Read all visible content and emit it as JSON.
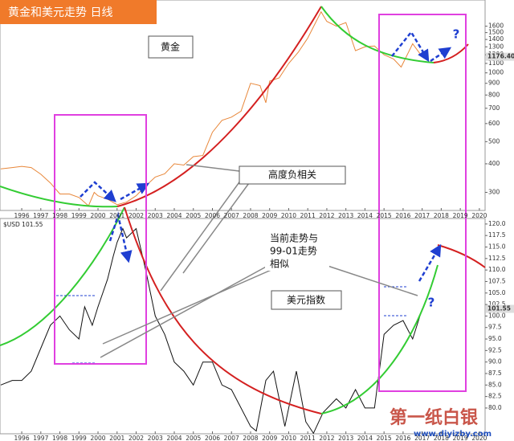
{
  "chart_data": [
    {
      "type": "line",
      "title": "黄金和美元走势 日线",
      "label": "黄金",
      "log_scale": true,
      "x": [
        1994.9,
        1995.5,
        1996,
        1996.5,
        1997,
        1997.5,
        1998,
        1998.5,
        1999,
        1999.5,
        1999.8,
        2000,
        2000.5,
        2001,
        2001.5,
        2002,
        2002.5,
        2003,
        2003.5,
        2004,
        2004.5,
        2005,
        2005.5,
        2006,
        2006.5,
        2007,
        2007.5,
        2008,
        2008.5,
        2008.8,
        2009,
        2009.5,
        2010,
        2010.5,
        2011,
        2011.7,
        2012,
        2012.5,
        2013,
        2013.5,
        2014,
        2014.5,
        2015,
        2015.5,
        2015.9,
        2016.5,
        2017
      ],
      "series": [
        {
          "name": "黄金",
          "color": "#e8873a",
          "values": [
            380,
            385,
            390,
            385,
            360,
            330,
            295,
            295,
            285,
            262,
            300,
            290,
            280,
            265,
            272,
            290,
            320,
            350,
            362,
            400,
            395,
            430,
            435,
            550,
            620,
            640,
            680,
            900,
            880,
            740,
            920,
            950,
            1100,
            1230,
            1420,
            1850,
            1680,
            1600,
            1660,
            1250,
            1300,
            1310,
            1200,
            1150,
            1060,
            1340,
            1176.4
          ]
        }
      ],
      "last_value_label": "1176.40",
      "xlim": [
        1994.86,
        2020.3
      ],
      "ylim": [
        250,
        2050
      ],
      "xticks": [
        1996,
        1997,
        1998,
        1999,
        2000,
        2001,
        2002,
        2003,
        2004,
        2005,
        2006,
        2007,
        2008,
        2009,
        2010,
        2011,
        2012,
        2013,
        2014,
        2015,
        2016,
        2017,
        2018,
        2019,
        2020
      ],
      "yticks": [
        300,
        400,
        500,
        600,
        700,
        800,
        900,
        1000,
        1100,
        1200,
        1300,
        1400,
        1500,
        1600
      ],
      "annotations": [
        "高度负相关",
        "?"
      ]
    },
    {
      "type": "line",
      "label": "美元指数",
      "legend": "$USD 101.55",
      "x": [
        1994.9,
        1995.5,
        1996,
        1996.5,
        1997,
        1997.5,
        1998,
        1998.5,
        1999,
        1999.3,
        1999.7,
        2000,
        2000.5,
        2000.8,
        2001,
        2001.3,
        2001.5,
        2002,
        2002.5,
        2003,
        2003.5,
        2004,
        2004.5,
        2005,
        2005.5,
        2006,
        2006.5,
        2007,
        2007.5,
        2008,
        2008.3,
        2008.8,
        2009.2,
        2009.8,
        2010.4,
        2010.9,
        2011.3,
        2011.8,
        2012.5,
        2013,
        2013.5,
        2014,
        2014.5,
        2015,
        2015.5,
        2016,
        2016.5,
        2017
      ],
      "series": [
        {
          "name": "$USD",
          "color": "#111111",
          "values": [
            85,
            86,
            86,
            88,
            93,
            98,
            100,
            97,
            95,
            102,
            98,
            102,
            108,
            113,
            116,
            119,
            117,
            119,
            110,
            100,
            96,
            90,
            88,
            85,
            90,
            90,
            85,
            84,
            80,
            76,
            75,
            86,
            88,
            76,
            88,
            77,
            74.5,
            79,
            82,
            80,
            84,
            80,
            80,
            96,
            98,
            99,
            95,
            101.55
          ]
        }
      ],
      "last_value_label": "101.55",
      "xlim": [
        1994.86,
        2020.3
      ],
      "ylim": [
        74.4,
        121.2
      ],
      "xticks": [
        1996,
        1997,
        1998,
        1999,
        2000,
        2001,
        2002,
        2003,
        2004,
        2005,
        2006,
        2007,
        2008,
        2009,
        2010,
        2011,
        2012,
        2013,
        2014,
        2015,
        2016,
        2017,
        2018,
        2019,
        2020
      ],
      "yticks": [
        {
          "value": 80,
          "label": "80.0"
        },
        82.5,
        {
          "value": 85,
          "label": "85.0"
        },
        87.5,
        {
          "value": 90,
          "label": "90.0"
        },
        92.5,
        {
          "value": 95,
          "label": "95.0"
        },
        97.5,
        {
          "value": 100,
          "label": "100.0"
        },
        102.5,
        {
          "value": 105,
          "label": "105.0"
        },
        107.5,
        {
          "value": 110,
          "label": "110.0"
        },
        112.5,
        {
          "value": 115,
          "label": "115.0"
        },
        117.5,
        {
          "value": 120,
          "label": "120.0"
        }
      ],
      "annotations": [
        "当前走势与",
        "99-01走势",
        "相似",
        "?"
      ]
    }
  ],
  "watermark": {
    "name": "第一纸白银",
    "url": "www.diyizby.com"
  }
}
